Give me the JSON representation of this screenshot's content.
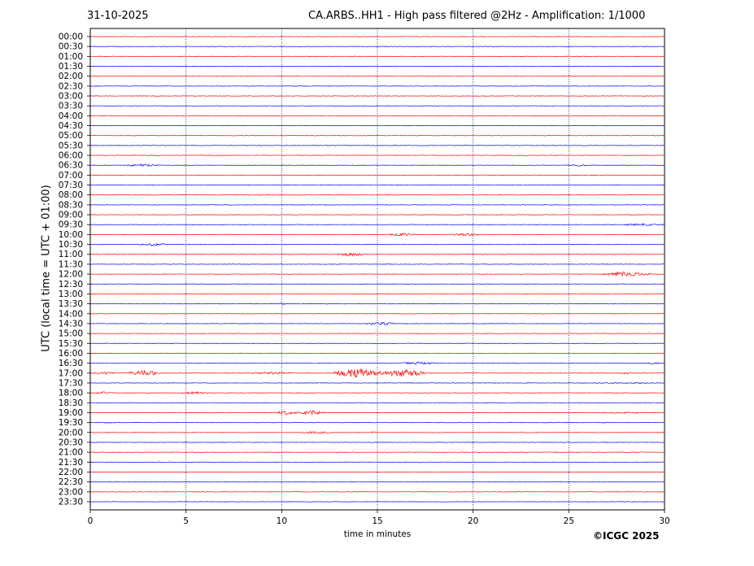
{
  "header": {
    "date": "31-10-2025",
    "title": "CA.ARBS..HH1 - High pass filtered @2Hz - Amplification: 1/1000"
  },
  "footer": {
    "copyright": "©ICGC 2025"
  },
  "chart_data": {
    "type": "line",
    "title": "CA.ARBS..HH1 - High pass filtered @2Hz - Amplification: 1/1000",
    "xlabel": "time in minutes",
    "ylabel": "UTC (local time = UTC + 01:00)",
    "xlim": [
      0,
      30
    ],
    "xticks": [
      0,
      5,
      10,
      15,
      20,
      25,
      30
    ],
    "vertical_gridlines_at": [
      5,
      10,
      15,
      20,
      25
    ],
    "trace_colors": [
      "#ff0000",
      "#0000ff"
    ],
    "rows": [
      "00:00",
      "00:30",
      "01:00",
      "01:30",
      "02:00",
      "02:30",
      "03:00",
      "03:30",
      "04:00",
      "04:30",
      "05:00",
      "05:30",
      "06:00",
      "06:30",
      "07:00",
      "07:30",
      "08:00",
      "08:30",
      "09:00",
      "09:30",
      "10:00",
      "10:30",
      "11:00",
      "11:30",
      "12:00",
      "12:30",
      "13:00",
      "13:30",
      "14:00",
      "14:30",
      "15:00",
      "15:30",
      "16:00",
      "16:30",
      "17:00",
      "17:30",
      "18:00",
      "18:30",
      "19:00",
      "19:30",
      "20:00",
      "20:30",
      "21:00",
      "21:30",
      "22:00",
      "22:30",
      "23:00",
      "23:30"
    ],
    "events": [
      {
        "row": "06:30",
        "start": 1.8,
        "end": 3.6,
        "amplitude": 1.6
      },
      {
        "row": "06:30",
        "start": 24.8,
        "end": 26.2,
        "amplitude": 1.0
      },
      {
        "row": "09:30",
        "start": 27.8,
        "end": 30.0,
        "amplitude": 1.5
      },
      {
        "row": "10:00",
        "start": 15.6,
        "end": 17.0,
        "amplitude": 2.0
      },
      {
        "row": "10:00",
        "start": 18.8,
        "end": 20.4,
        "amplitude": 1.8
      },
      {
        "row": "10:30",
        "start": 2.4,
        "end": 4.0,
        "amplitude": 2.0
      },
      {
        "row": "11:00",
        "start": 12.9,
        "end": 14.4,
        "amplitude": 2.2
      },
      {
        "row": "12:00",
        "start": 26.8,
        "end": 29.3,
        "amplitude": 3.0
      },
      {
        "row": "13:30",
        "start": 9.7,
        "end": 10.3,
        "amplitude": 1.2
      },
      {
        "row": "14:30",
        "start": 14.3,
        "end": 16.0,
        "amplitude": 2.0
      },
      {
        "row": "16:30",
        "start": 16.0,
        "end": 18.2,
        "amplitude": 1.6
      },
      {
        "row": "16:30",
        "start": 28.8,
        "end": 30.0,
        "amplitude": 1.0
      },
      {
        "row": "17:00",
        "start": 0.0,
        "end": 1.4,
        "amplitude": 1.6
      },
      {
        "row": "17:00",
        "start": 2.0,
        "end": 3.6,
        "amplitude": 4.5
      },
      {
        "row": "17:00",
        "start": 8.2,
        "end": 10.8,
        "amplitude": 1.5
      },
      {
        "row": "17:00",
        "start": 12.7,
        "end": 15.3,
        "amplitude": 6.0
      },
      {
        "row": "17:00",
        "start": 15.3,
        "end": 17.5,
        "amplitude": 5.0
      },
      {
        "row": "17:00",
        "start": 27.5,
        "end": 28.5,
        "amplitude": 1.2
      },
      {
        "row": "17:30",
        "start": 22.8,
        "end": 23.0,
        "amplitude": 1.2
      },
      {
        "row": "17:30",
        "start": 26.0,
        "end": 30.0,
        "amplitude": 0.8
      },
      {
        "row": "18:00",
        "start": 0.2,
        "end": 1.2,
        "amplitude": 1.5
      },
      {
        "row": "18:00",
        "start": 4.6,
        "end": 6.2,
        "amplitude": 1.5
      },
      {
        "row": "19:00",
        "start": 9.6,
        "end": 10.9,
        "amplitude": 2.6
      },
      {
        "row": "19:00",
        "start": 10.9,
        "end": 12.2,
        "amplitude": 3.0
      },
      {
        "row": "19:00",
        "start": 26.8,
        "end": 28.8,
        "amplitude": 1.2
      },
      {
        "row": "19:30",
        "start": 0.6,
        "end": 1.4,
        "amplitude": 0.8
      },
      {
        "row": "20:00",
        "start": 10.8,
        "end": 12.8,
        "amplitude": 1.4
      },
      {
        "row": "20:00",
        "start": 14.6,
        "end": 15.0,
        "amplitude": 1.2
      }
    ]
  }
}
